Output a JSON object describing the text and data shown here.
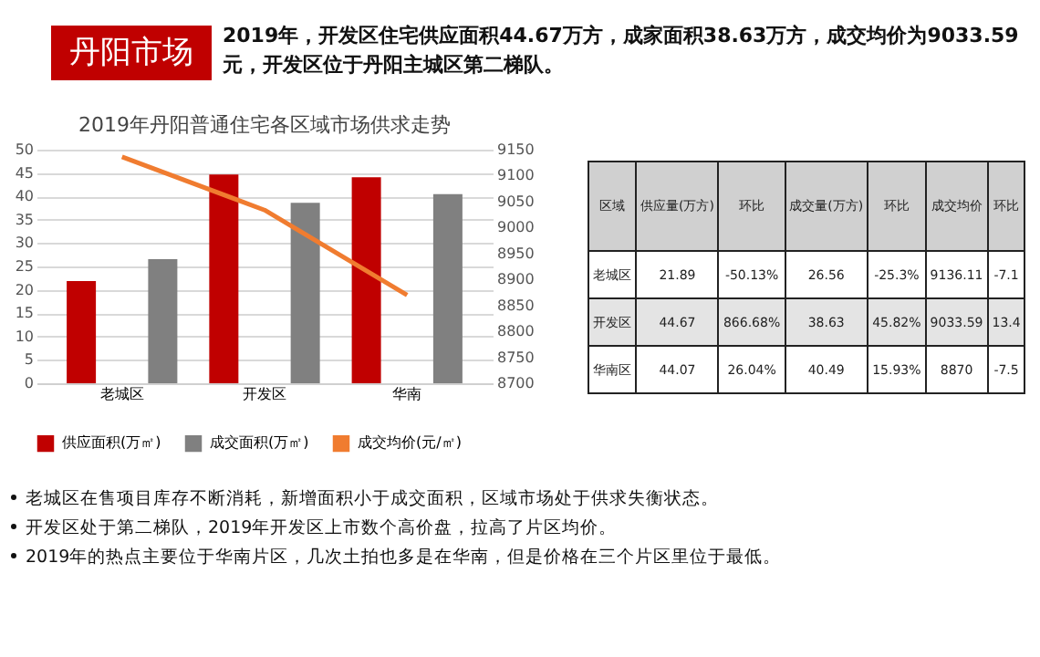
{
  "chart_data": [
    {
      "type": "bar",
      "title": "2019年丹阳普通住宅各区域市场供求走势",
      "annotations": [
        "丹阳市场",
        "2019年，开发区住宅供应面积44.67万方，成家面积38.63万方，成交均价为9033.59元，开发区位于丹阳主城区第二梯队。",
        "老城区在售项目库存不断消耗，新增面积小于成交面积，区域市场处于供求失衡状态。",
        "开发区处于第二梯队，2019年开发区上市数个高价盘，拉高了片区均价。",
        "2019年的热点主要位于华南片区，几次土拍也多是在华南，但是价格在三个片区里位于最低。"
      ],
      "categories": [
        "老城区",
        "开发区",
        "华南"
      ],
      "series": [
        {
          "name": "供应面积(万㎡)",
          "color": "#c00000",
          "values": [
            21.89,
            44.67,
            44.07
          ]
        },
        {
          "name": "成交面积(万㎡)",
          "color": "#808080",
          "values": [
            26.56,
            38.63,
            40.49
          ]
        },
        {
          "name": "成交均价(元/㎡)",
          "color": "#f07c30",
          "type": "line",
          "axis": "y2",
          "values": [
            9136.11,
            9033.59,
            8870
          ]
        }
      ],
      "ylim": [
        0,
        50
      ],
      "yticks": [
        0,
        5,
        10,
        15,
        20,
        25,
        30,
        35,
        40,
        45,
        50
      ],
      "y2lim": [
        8700,
        9150
      ],
      "y2ticks": [
        8700,
        8750,
        8800,
        8850,
        8900,
        8950,
        9000,
        9050,
        9100,
        9150
      ],
      "grid": "y",
      "legend": "bottom"
    },
    {
      "type": "other",
      "categories": [
        "区域",
        "供应量(万方)",
        "环比",
        "成交量(万方)",
        "环比",
        "成交均价",
        "环比"
      ],
      "cell_labels": [
        [
          "老城区",
          "21.89",
          "-50.13%",
          "26.56",
          "-25.3%",
          "9136.11",
          "-7.1"
        ],
        [
          "开发区",
          "44.67",
          "866.68%",
          "38.63",
          "45.82%",
          "9033.59",
          "13.4"
        ],
        [
          "华南区",
          "44.07",
          "26.04%",
          "40.49",
          "15.93%",
          "8870",
          "-7.5"
        ]
      ]
    }
  ]
}
